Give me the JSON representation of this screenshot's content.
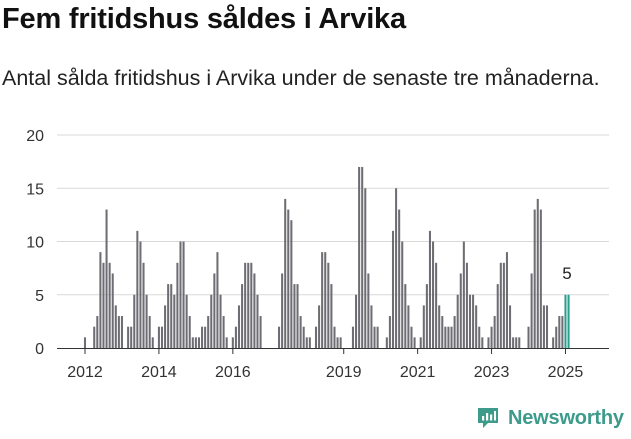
{
  "title": "Fem fritidshus såldes i Arvika",
  "subtitle": "Antal sålda fritidshus i Arvika under de senaste tre månaderna.",
  "brand": {
    "name": "Newsworthy",
    "icon": "newsworthy-logo-icon",
    "color": "#3d9b8c"
  },
  "chart_data": {
    "type": "bar",
    "title": "Fem fritidshus såldes i Arvika",
    "subtitle": "Antal sålda fritidshus i Arvika under de senaste tre månaderna.",
    "xlabel": "",
    "ylabel": "",
    "ylim": [
      0,
      20
    ],
    "yticks": [
      0,
      5,
      10,
      15,
      20
    ],
    "xticks": [
      {
        "label": "2012",
        "index": 0
      },
      {
        "label": "2014",
        "index": 24
      },
      {
        "label": "2016",
        "index": 48
      },
      {
        "label": "2019",
        "index": 84
      },
      {
        "label": "2021",
        "index": 108
      },
      {
        "label": "2023",
        "index": 132
      },
      {
        "label": "2025",
        "index": 156
      }
    ],
    "start": "2012-01",
    "frequency": "monthly",
    "grid": true,
    "bar_color": "#6e6d73",
    "highlight_color": "#2a9d8f",
    "highlight_last": 2,
    "last_value_label": "5",
    "values": [
      1,
      0,
      0,
      2,
      3,
      9,
      8,
      13,
      8,
      7,
      4,
      3,
      3,
      0,
      2,
      2,
      5,
      11,
      10,
      8,
      5,
      3,
      1,
      0,
      2,
      2,
      4,
      6,
      6,
      5,
      8,
      10,
      10,
      5,
      3,
      1,
      1,
      1,
      2,
      2,
      3,
      5,
      7,
      9,
      5,
      3,
      1,
      0,
      1,
      2,
      4,
      6,
      8,
      8,
      8,
      7,
      5,
      3,
      0,
      0,
      0,
      0,
      0,
      2,
      7,
      14,
      13,
      12,
      6,
      6,
      3,
      2,
      1,
      1,
      0,
      2,
      4,
      9,
      9,
      8,
      6,
      2,
      1,
      1,
      0,
      0,
      0,
      2,
      5,
      17,
      17,
      15,
      7,
      4,
      2,
      2,
      0,
      0,
      1,
      3,
      11,
      15,
      13,
      10,
      6,
      4,
      2,
      1,
      0,
      1,
      4,
      6,
      11,
      10,
      8,
      4,
      3,
      2,
      2,
      2,
      3,
      5,
      7,
      10,
      8,
      5,
      5,
      4,
      2,
      1,
      0,
      1,
      2,
      3,
      6,
      8,
      8,
      9,
      4,
      1,
      1,
      1,
      0,
      0,
      2,
      7,
      13,
      14,
      13,
      4,
      4,
      0,
      1,
      2,
      3,
      3,
      5,
      5
    ]
  }
}
